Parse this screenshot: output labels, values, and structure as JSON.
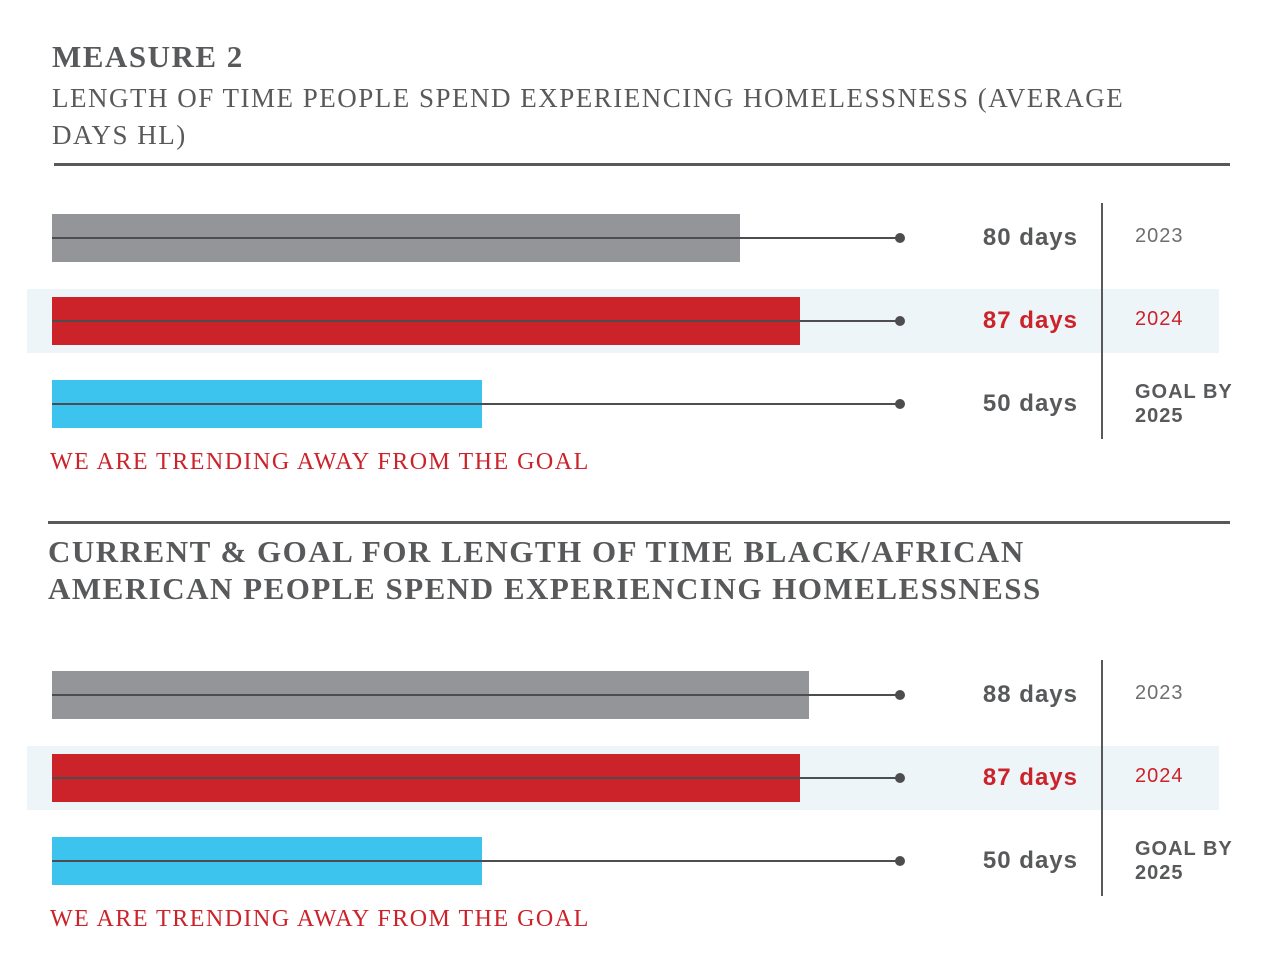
{
  "chart_data": [
    {
      "type": "bar",
      "title": "MEASURE 2",
      "subtitle": "LENGTH OF TIME PEOPLE SPEND EXPERIENCING HOMELESSNESS (AVERAGE DAYS HL)",
      "categories": [
        "2023",
        "2024",
        "GOAL BY 2025"
      ],
      "values": [
        80,
        87,
        50
      ],
      "value_labels": [
        "80 days",
        "87 days",
        "50 days"
      ],
      "colors": [
        "#939598",
        "#cc2229",
        "#3cc4ee"
      ],
      "xlim": [
        0,
        100
      ],
      "highlight": 1,
      "annotation": "WE ARE TRENDING AWAY FROM THE GOAL"
    },
    {
      "type": "bar",
      "title": "CURRENT & GOAL FOR LENGTH OF TIME BLACK/AFRICAN AMERICAN PEOPLE SPEND EXPERIENCING HOMELESSNESS",
      "categories": [
        "2023",
        "2024",
        "GOAL BY 2025"
      ],
      "values": [
        88,
        87,
        50
      ],
      "value_labels": [
        "88 days",
        "87 days",
        "50 days"
      ],
      "colors": [
        "#939598",
        "#cc2229",
        "#3cc4ee"
      ],
      "xlim": [
        0,
        100
      ],
      "highlight": 1,
      "annotation": "WE ARE TRENDING AWAY FROM THE GOAL"
    }
  ]
}
